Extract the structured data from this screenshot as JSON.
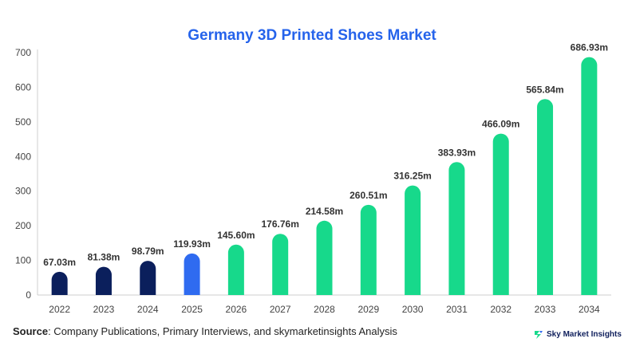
{
  "chart_data": {
    "type": "bar",
    "title": "Germany 3D Printed Shoes Market",
    "categories": [
      "2022",
      "2023",
      "2024",
      "2025",
      "2026",
      "2027",
      "2028",
      "2029",
      "2030",
      "2031",
      "2032",
      "2033",
      "2034"
    ],
    "values": [
      67.03,
      81.38,
      98.79,
      119.93,
      145.6,
      176.76,
      214.58,
      260.51,
      316.25,
      383.93,
      466.09,
      565.84,
      686.93
    ],
    "data_labels": [
      "67.03m",
      "81.38m",
      "98.79m",
      "119.93m",
      "145.60m",
      "176.76m",
      "214.58m",
      "260.51m",
      "316.25m",
      "383.93m",
      "466.09m",
      "565.84m",
      "686.93m"
    ],
    "bar_colors": [
      "#0b1f5c",
      "#0b1f5c",
      "#0b1f5c",
      "#2f6bf0",
      "#17d98b",
      "#17d98b",
      "#17d98b",
      "#17d98b",
      "#17d98b",
      "#17d98b",
      "#17d98b",
      "#17d98b",
      "#17d98b"
    ],
    "yticks": [
      0,
      100,
      200,
      300,
      400,
      500,
      600,
      700
    ],
    "ylim": [
      0,
      700
    ],
    "xlabel": "",
    "ylabel": "",
    "grid": false
  },
  "footer": {
    "source_label": "Source",
    "source_text": ": Company Publications, Primary Interviews, and skymarketinsights Analysis",
    "brand_name": "Sky Market Insights",
    "brand_icon": "sky-market-insights-logo-icon"
  }
}
